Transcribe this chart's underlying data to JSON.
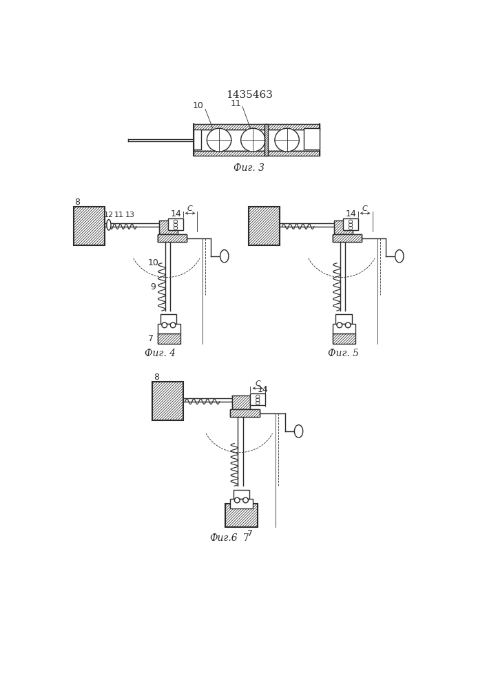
{
  "title": "1435463",
  "fig3_label": "Фиг. 3",
  "fig4_label": "Фиг. 4",
  "fig5_label": "Фиг. 5",
  "fig6_label": "Фиг.6",
  "label7": "7",
  "bg_color": "#ffffff",
  "line_color": "#2a2a2a",
  "lw": 1.0,
  "lw_thin": 0.6,
  "lw_thick": 1.5
}
